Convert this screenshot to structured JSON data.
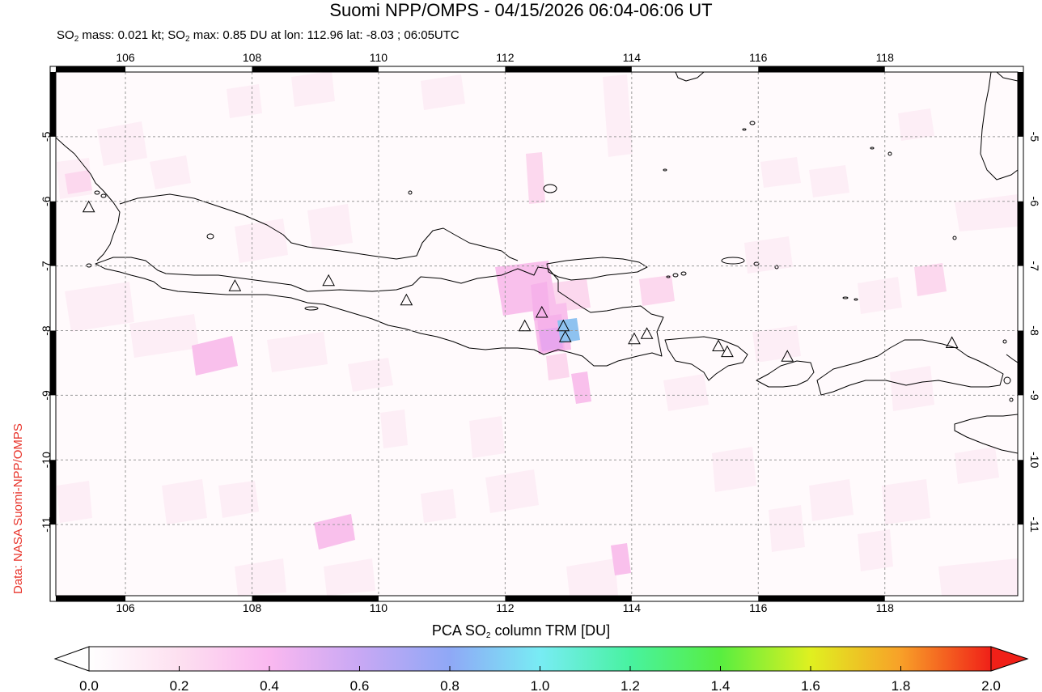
{
  "header": {
    "title": "Suomi NPP/OMPS - 04/15/2026 06:04-06:06 UT",
    "stats_mass_label": "SO",
    "stats_mass_sub": "2",
    "stats_mass_value": " mass: 0.021 kt; SO",
    "stats_max_sub": "2",
    "stats_max_value": " max: 0.85 DU at lon: 112.96 lat: -8.03 ; 06:05UTC"
  },
  "credit": "Data: NASA Suomi-NPP/OMPS",
  "map": {
    "lon_ticks": [
      "106",
      "108",
      "110",
      "112",
      "114",
      "116",
      "118"
    ],
    "lat_ticks": [
      "-5",
      "-6",
      "-7",
      "-8",
      "-9",
      "-10",
      "-11"
    ],
    "lon_range": [
      104.9,
      120.1
    ],
    "lat_range": [
      -12.1,
      -4.0
    ],
    "grid": true,
    "volcano_icon": "triangle-volcano-icon",
    "volcanoes": [
      [
        105.42,
        -6.1
      ],
      [
        107.73,
        -7.32
      ],
      [
        109.21,
        -7.24
      ],
      [
        110.44,
        -7.54
      ],
      [
        112.31,
        -7.94
      ],
      [
        112.58,
        -7.73
      ],
      [
        112.92,
        -7.94
      ],
      [
        112.95,
        -8.11
      ],
      [
        114.04,
        -8.14
      ],
      [
        114.24,
        -8.06
      ],
      [
        115.37,
        -8.25
      ],
      [
        115.51,
        -8.34
      ],
      [
        116.46,
        -8.41
      ],
      [
        119.06,
        -8.2
      ]
    ],
    "so2_max_lon": 112.96,
    "so2_max_lat": -8.03
  },
  "colorbar": {
    "title_prefix": "PCA SO",
    "title_sub": "2",
    "title_suffix": " column TRM [DU]",
    "tick_labels": [
      "0.0",
      "0.2",
      "0.4",
      "0.6",
      "0.8",
      "1.0",
      "1.2",
      "1.4",
      "1.6",
      "1.8",
      "2.0"
    ],
    "range": [
      0.0,
      2.0
    ],
    "colors": [
      "#ffffff",
      "#fde0f0",
      "#fab8f0",
      "#c8a8f4",
      "#8fa8f6",
      "#78ecf4",
      "#48f2a0",
      "#58ee40",
      "#e0f020",
      "#f8a028",
      "#f02018"
    ]
  }
}
